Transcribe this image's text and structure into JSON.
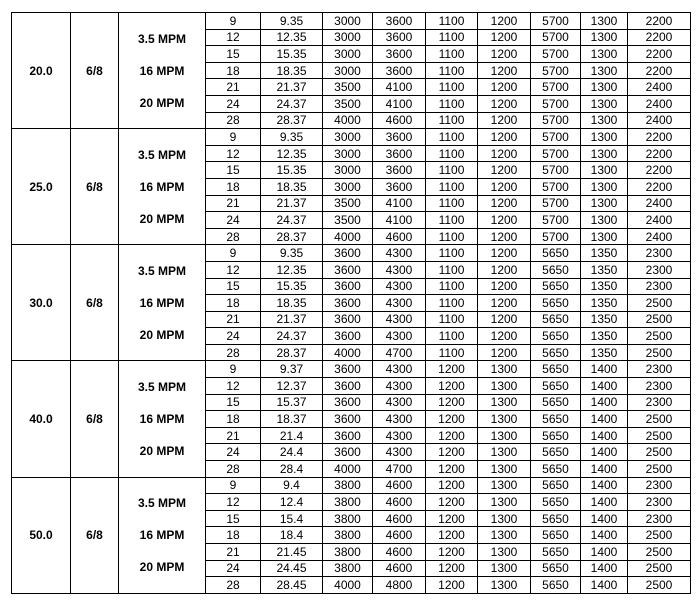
{
  "groups": [
    {
      "size": "20.0",
      "ratio": "6/8",
      "speeds": [
        "3.5 MPM",
        "16 MPM",
        "20 MPM"
      ],
      "rows": [
        [
          "9",
          "9.35",
          "3000",
          "3600",
          "1100",
          "1200",
          "5700",
          "1300",
          "2200"
        ],
        [
          "12",
          "12.35",
          "3000",
          "3600",
          "1100",
          "1200",
          "5700",
          "1300",
          "2200"
        ],
        [
          "15",
          "15.35",
          "3000",
          "3600",
          "1100",
          "1200",
          "5700",
          "1300",
          "2200"
        ],
        [
          "18",
          "18.35",
          "3000",
          "3600",
          "1100",
          "1200",
          "5700",
          "1300",
          "2200"
        ],
        [
          "21",
          "21.37",
          "3500",
          "4100",
          "1100",
          "1200",
          "5700",
          "1300",
          "2400"
        ],
        [
          "24",
          "24.37",
          "3500",
          "4100",
          "1100",
          "1200",
          "5700",
          "1300",
          "2400"
        ],
        [
          "28",
          "28.37",
          "4000",
          "4600",
          "1100",
          "1200",
          "5700",
          "1300",
          "2400"
        ]
      ]
    },
    {
      "size": "25.0",
      "ratio": "6/8",
      "speeds": [
        "3.5 MPM",
        "16 MPM",
        "20 MPM"
      ],
      "rows": [
        [
          "9",
          "9.35",
          "3000",
          "3600",
          "1100",
          "1200",
          "5700",
          "1300",
          "2200"
        ],
        [
          "12",
          "12.35",
          "3000",
          "3600",
          "1100",
          "1200",
          "5700",
          "1300",
          "2200"
        ],
        [
          "15",
          "15.35",
          "3000",
          "3600",
          "1100",
          "1200",
          "5700",
          "1300",
          "2200"
        ],
        [
          "18",
          "18.35",
          "3000",
          "3600",
          "1100",
          "1200",
          "5700",
          "1300",
          "2200"
        ],
        [
          "21",
          "21.37",
          "3500",
          "4100",
          "1100",
          "1200",
          "5700",
          "1300",
          "2400"
        ],
        [
          "24",
          "24.37",
          "3500",
          "4100",
          "1100",
          "1200",
          "5700",
          "1300",
          "2400"
        ],
        [
          "28",
          "28.37",
          "4000",
          "4600",
          "1100",
          "1200",
          "5700",
          "1300",
          "2400"
        ]
      ]
    },
    {
      "size": "30.0",
      "ratio": "6/8",
      "speeds": [
        "3.5 MPM",
        "16 MPM",
        "20 MPM"
      ],
      "rows": [
        [
          "9",
          "9.35",
          "3600",
          "4300",
          "1100",
          "1200",
          "5650",
          "1350",
          "2300"
        ],
        [
          "12",
          "12.35",
          "3600",
          "4300",
          "1100",
          "1200",
          "5650",
          "1350",
          "2300"
        ],
        [
          "15",
          "15.35",
          "3600",
          "4300",
          "1100",
          "1200",
          "5650",
          "1350",
          "2300"
        ],
        [
          "18",
          "18.35",
          "3600",
          "4300",
          "1100",
          "1200",
          "5650",
          "1350",
          "2500"
        ],
        [
          "21",
          "21.37",
          "3600",
          "4300",
          "1100",
          "1200",
          "5650",
          "1350",
          "2500"
        ],
        [
          "24",
          "24.37",
          "3600",
          "4300",
          "1100",
          "1200",
          "5650",
          "1350",
          "2500"
        ],
        [
          "28",
          "28.37",
          "4000",
          "4700",
          "1100",
          "1200",
          "5650",
          "1350",
          "2500"
        ]
      ]
    },
    {
      "size": "40.0",
      "ratio": "6/8",
      "speeds": [
        "3.5 MPM",
        "16 MPM",
        "20 MPM"
      ],
      "rows": [
        [
          "9",
          "9.37",
          "3600",
          "4300",
          "1200",
          "1300",
          "5650",
          "1400",
          "2300"
        ],
        [
          "12",
          "12.37",
          "3600",
          "4300",
          "1200",
          "1300",
          "5650",
          "1400",
          "2300"
        ],
        [
          "15",
          "15.37",
          "3600",
          "4300",
          "1200",
          "1300",
          "5650",
          "1400",
          "2300"
        ],
        [
          "18",
          "18.37",
          "3600",
          "4300",
          "1200",
          "1300",
          "5650",
          "1400",
          "2500"
        ],
        [
          "21",
          "21.4",
          "3600",
          "4300",
          "1200",
          "1300",
          "5650",
          "1400",
          "2500"
        ],
        [
          "24",
          "24.4",
          "3600",
          "4300",
          "1200",
          "1300",
          "5650",
          "1400",
          "2500"
        ],
        [
          "28",
          "28.4",
          "4000",
          "4700",
          "1200",
          "1300",
          "5650",
          "1400",
          "2500"
        ]
      ]
    },
    {
      "size": "50.0",
      "ratio": "6/8",
      "speeds": [
        "3.5 MPM",
        "16 MPM",
        "20 MPM"
      ],
      "rows": [
        [
          "9",
          "9.4",
          "3800",
          "4600",
          "1200",
          "1300",
          "5650",
          "1400",
          "2300"
        ],
        [
          "12",
          "12.4",
          "3800",
          "4600",
          "1200",
          "1300",
          "5650",
          "1400",
          "2300"
        ],
        [
          "15",
          "15.4",
          "3800",
          "4600",
          "1200",
          "1300",
          "5650",
          "1400",
          "2300"
        ],
        [
          "18",
          "18.4",
          "3800",
          "4600",
          "1200",
          "1300",
          "5650",
          "1400",
          "2500"
        ],
        [
          "21",
          "21.45",
          "3800",
          "4600",
          "1200",
          "1300",
          "5650",
          "1400",
          "2500"
        ],
        [
          "24",
          "24.45",
          "3800",
          "4600",
          "1200",
          "1300",
          "5650",
          "1400",
          "2500"
        ],
        [
          "28",
          "28.45",
          "4000",
          "4800",
          "1200",
          "1300",
          "5650",
          "1400",
          "2500"
        ]
      ]
    }
  ]
}
